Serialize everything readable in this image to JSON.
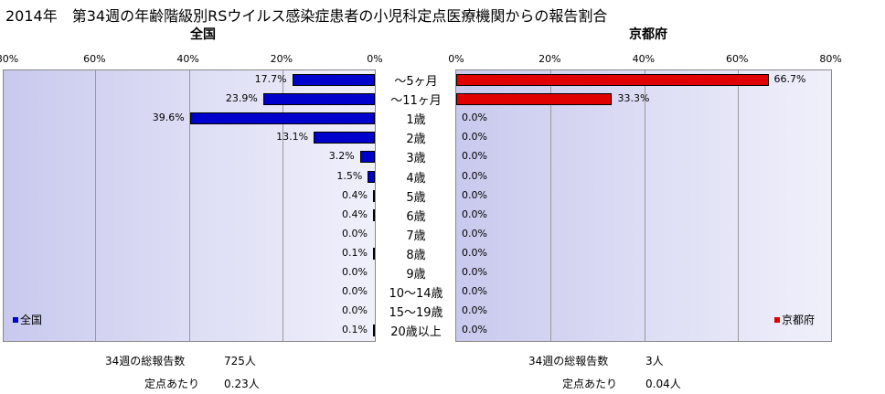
{
  "title": "2014年　第34週の年齢階級別RSウイルス感染症患者の小児科定点医療機関からの報告割合",
  "categories": [
    "～5ヶ月",
    "～11ヶ月",
    "1歳",
    "2歳",
    "3歳",
    "4歳",
    "5歳",
    "6歳",
    "7歳",
    "8歳",
    "9歳",
    "10～14歳",
    "15～19歳",
    "20歳以上"
  ],
  "chart_data": [
    {
      "type": "bar",
      "title": "全国",
      "orientation": "horizontal",
      "direction": "right-to-left",
      "categories": [
        "～5ヶ月",
        "～11ヶ月",
        "1歳",
        "2歳",
        "3歳",
        "4歳",
        "5歳",
        "6歳",
        "7歳",
        "8歳",
        "9歳",
        "10～14歳",
        "15～19歳",
        "20歳以上"
      ],
      "series": [
        {
          "name": "全国",
          "color": "#0000cc",
          "values": [
            17.7,
            23.9,
            39.6,
            13.1,
            3.2,
            1.5,
            0.4,
            0.4,
            0.0,
            0.1,
            0.0,
            0.0,
            0.0,
            0.1
          ]
        }
      ],
      "labels": [
        "17.7%",
        "23.9%",
        "39.6%",
        "13.1%",
        "3.2%",
        "1.5%",
        "0.4%",
        "0.4%",
        "0.0%",
        "0.1%",
        "0.0%",
        "0.0%",
        "0.0%",
        "0.1%"
      ],
      "xlim": [
        0,
        80
      ],
      "ticks": [
        "80%",
        "60%",
        "40%",
        "20%",
        "0%"
      ],
      "legend": "bottom-left",
      "grid": true
    },
    {
      "type": "bar",
      "title": "京都府",
      "orientation": "horizontal",
      "direction": "left-to-right",
      "categories": [
        "～5ヶ月",
        "～11ヶ月",
        "1歳",
        "2歳",
        "3歳",
        "4歳",
        "5歳",
        "6歳",
        "7歳",
        "8歳",
        "9歳",
        "10～14歳",
        "15～19歳",
        "20歳以上"
      ],
      "series": [
        {
          "name": "京都府",
          "color": "#e00000",
          "values": [
            66.7,
            33.3,
            0,
            0,
            0,
            0,
            0,
            0,
            0,
            0,
            0,
            0,
            0,
            0
          ]
        }
      ],
      "labels": [
        "66.7%",
        "33.3%",
        "0.0%",
        "0.0%",
        "0.0%",
        "0.0%",
        "0.0%",
        "0.0%",
        "0.0%",
        "0.0%",
        "0.0%",
        "0.0%",
        "0.0%",
        "0.0%"
      ],
      "xlim": [
        0,
        80
      ],
      "ticks": [
        "0%",
        "20%",
        "40%",
        "60%",
        "80%"
      ],
      "legend": "bottom-right",
      "grid": true
    }
  ],
  "footer": {
    "national": {
      "total_label": "34週の総報告数",
      "total_value": "725人",
      "per_label": "定点あたり",
      "per_value": "0.23人"
    },
    "kyoto": {
      "total_label": "34週の総報告数",
      "total_value": "3人",
      "per_label": "定点あたり",
      "per_value": "0.04人"
    }
  }
}
